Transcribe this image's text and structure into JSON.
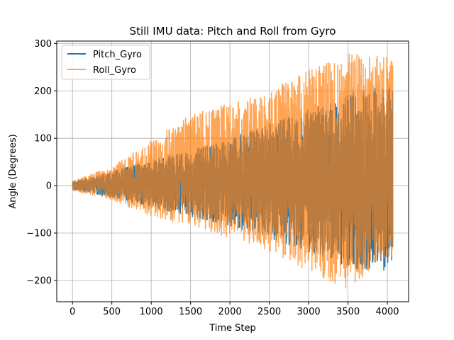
{
  "chart_data": {
    "type": "line",
    "title": "Still IMU data: Pitch and Roll from Gyro",
    "xlabel": "Time Step",
    "ylabel": "Angle (Degrees)",
    "xlim": [
      -200,
      4270
    ],
    "ylim": [
      -245,
      305
    ],
    "xticks": [
      0,
      500,
      1000,
      1500,
      2000,
      2500,
      3000,
      3500,
      4000
    ],
    "yticks": [
      -200,
      -100,
      0,
      100,
      200,
      300
    ],
    "grid": true,
    "legend_position": "top-left",
    "n_points": 4070,
    "series": [
      {
        "name": "Pitch_Gyro",
        "color": "#1f77b4",
        "alpha": 1.0,
        "envelope": {
          "x": [
            0,
            500,
            1000,
            1500,
            2000,
            2500,
            3000,
            3500,
            4000,
            4070
          ],
          "upper": [
            8,
            30,
            55,
            75,
            100,
            130,
            160,
            195,
            210,
            215
          ],
          "lower": [
            -8,
            -25,
            -45,
            -65,
            -85,
            -110,
            -140,
            -175,
            -180,
            -160
          ]
        }
      },
      {
        "name": "Roll_Gyro",
        "color": "#ff7f0e",
        "alpha": 0.7,
        "envelope": {
          "x": [
            0,
            500,
            1000,
            1500,
            2000,
            2500,
            3000,
            3500,
            4000,
            4070
          ],
          "upper": [
            10,
            40,
            95,
            150,
            175,
            200,
            245,
            280,
            275,
            270
          ],
          "lower": [
            -10,
            -30,
            -65,
            -85,
            -110,
            -140,
            -180,
            -220,
            -150,
            -150
          ]
        }
      }
    ]
  }
}
